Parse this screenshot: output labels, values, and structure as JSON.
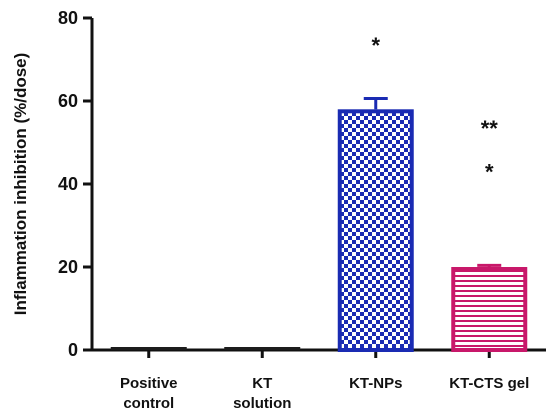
{
  "chart_data": {
    "type": "bar",
    "categories": [
      [
        "Positive",
        "control"
      ],
      [
        "KT",
        "solution"
      ],
      [
        "KT-NPs"
      ],
      [
        "KT-CTS gel"
      ]
    ],
    "values": [
      0,
      0,
      58,
      20
    ],
    "errors": [
      0,
      0,
      2.6,
      0.4
    ],
    "fills": [
      "#1c1c1c",
      "#1c1c1c",
      "#1a2bb3",
      "#c8186a"
    ],
    "patterns": [
      "solid",
      "solid",
      "checker",
      "hlines"
    ],
    "annotations": [
      {
        "category_index": 2,
        "text": "*",
        "y": 74
      },
      {
        "category_index": 3,
        "text": "**",
        "y": 54
      },
      {
        "category_index": 3,
        "text": "*",
        "y": 43.5
      }
    ],
    "ylabel": "Inflammation inhibition (%/dose)",
    "xlabel": "",
    "title": "",
    "ylim": [
      0,
      80
    ],
    "yticks": [
      0,
      20,
      40,
      60,
      80
    ],
    "grid": false,
    "legend": "none"
  }
}
